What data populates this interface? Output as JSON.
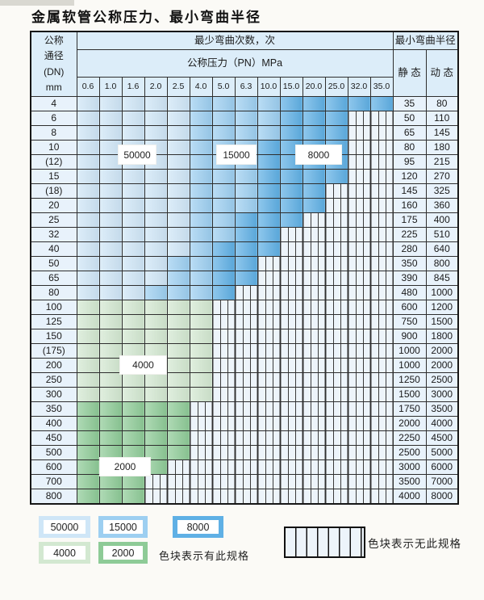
{
  "title": "金属软管公称压力、最小弯曲半径",
  "table": {
    "dn_header_lines": [
      "公称",
      "通径",
      "(DN)",
      "mm"
    ],
    "cycles_header": "最少弯曲次数，次",
    "pressure_header": "公称压力（PN）MPa",
    "pressure_columns": [
      "0.6",
      "1.0",
      "1.6",
      "2.0",
      "2.5",
      "4.0",
      "5.0",
      "6.3",
      "10.0",
      "15.0",
      "20.0",
      "25.0",
      "32.0",
      "35.0"
    ],
    "radius_header": "最小弯曲半径",
    "static_label": "静 态",
    "dynamic_label": "动 态",
    "cell_legend_note": "cells string: a=50000 cycles zone, b=15000, c=8000, d=4000, e=2000, x=no spec (hatched)",
    "rows": [
      {
        "dn": "4",
        "cells": "aaaaabbbbccccc",
        "static": "35",
        "dynamic": "80"
      },
      {
        "dn": "6",
        "cells": "aaaaabbbbcccxx",
        "static": "50",
        "dynamic": "110"
      },
      {
        "dn": "8",
        "cells": "aaaaabbbbcccxx",
        "static": "65",
        "dynamic": "145"
      },
      {
        "dn": "10",
        "cells": "aaaaabbbccccxx",
        "static": "80",
        "dynamic": "180"
      },
      {
        "dn": "(12)",
        "cells": "aaaaabbbccccxx",
        "static": "95",
        "dynamic": "215"
      },
      {
        "dn": "15",
        "cells": "aaaaabbbccccxx",
        "static": "120",
        "dynamic": "270"
      },
      {
        "dn": "(18)",
        "cells": "aaaaabbbcccxxx",
        "static": "145",
        "dynamic": "325"
      },
      {
        "dn": "20",
        "cells": "aaaaabbbcccxxx",
        "static": "160",
        "dynamic": "360"
      },
      {
        "dn": "25",
        "cells": "aaaaabbcccxxxx",
        "static": "175",
        "dynamic": "400"
      },
      {
        "dn": "32",
        "cells": "aaaaabbccxxxxx",
        "static": "225",
        "dynamic": "510"
      },
      {
        "dn": "40",
        "cells": "aaaaabcccxxxxx",
        "static": "280",
        "dynamic": "640"
      },
      {
        "dn": "50",
        "cells": "aaaabbccxxxxxx",
        "static": "350",
        "dynamic": "800"
      },
      {
        "dn": "65",
        "cells": "aaaabbccxxxxxx",
        "static": "390",
        "dynamic": "845"
      },
      {
        "dn": "80",
        "cells": "aaabbbcxxxxxxx",
        "static": "480",
        "dynamic": "1000"
      },
      {
        "dn": "100",
        "cells": "ddddddxxxxxxxx",
        "static": "600",
        "dynamic": "1200"
      },
      {
        "dn": "125",
        "cells": "ddddddxxxxxxxx",
        "static": "750",
        "dynamic": "1500"
      },
      {
        "dn": "150",
        "cells": "ddddddxxxxxxxx",
        "static": "900",
        "dynamic": "1800"
      },
      {
        "dn": "(175)",
        "cells": "ddddddxxxxxxxx",
        "static": "1000",
        "dynamic": "2000"
      },
      {
        "dn": "200",
        "cells": "ddddddxxxxxxxx",
        "static": "1000",
        "dynamic": "2000"
      },
      {
        "dn": "250",
        "cells": "ddddddxxxxxxxx",
        "static": "1250",
        "dynamic": "2500"
      },
      {
        "dn": "300",
        "cells": "ddddddxxxxxxxx",
        "static": "1500",
        "dynamic": "3000"
      },
      {
        "dn": "350",
        "cells": "eeeeexxxxxxxxx",
        "static": "1750",
        "dynamic": "3500"
      },
      {
        "dn": "400",
        "cells": "eeeeexxxxxxxxx",
        "static": "2000",
        "dynamic": "4000"
      },
      {
        "dn": "450",
        "cells": "eeeeexxxxxxxxx",
        "static": "2250",
        "dynamic": "4500"
      },
      {
        "dn": "500",
        "cells": "eeeeexxxxxxxxx",
        "static": "2500",
        "dynamic": "5000"
      },
      {
        "dn": "600",
        "cells": "eeeexxxxxxxxxx",
        "static": "3000",
        "dynamic": "6000"
      },
      {
        "dn": "700",
        "cells": "eeexxxxxxxxxxx",
        "static": "3500",
        "dynamic": "7000"
      },
      {
        "dn": "800",
        "cells": "eeexxxxxxxxxxx",
        "static": "4000",
        "dynamic": "8000"
      }
    ]
  },
  "table_overlays": [
    {
      "text": "50000"
    },
    {
      "text": "15000"
    },
    {
      "text": "8000"
    },
    {
      "text": "4000"
    },
    {
      "text": "2000"
    }
  ],
  "legend": {
    "swatches": [
      {
        "id": "z50000",
        "label": "50000"
      },
      {
        "id": "z15000",
        "label": "15000"
      },
      {
        "id": "z8000",
        "label": "8000"
      },
      {
        "id": "z4000",
        "label": "4000"
      },
      {
        "id": "z2000",
        "label": "2000"
      }
    ],
    "available_label": "色块表示有此规格",
    "unavailable_label": "色块表示无此规格"
  },
  "colors": {
    "z50000": "#cfe6f7",
    "z15000": "#9dcff1",
    "z8000": "#5fb0e5",
    "z4000": "#d3e8d1",
    "z2000": "#8ecb97",
    "hatch_bg": "#edf4fa",
    "grid": "#2e2e2e",
    "header_bg": "#dcedf9",
    "label_bg": "#e8f2fb"
  }
}
